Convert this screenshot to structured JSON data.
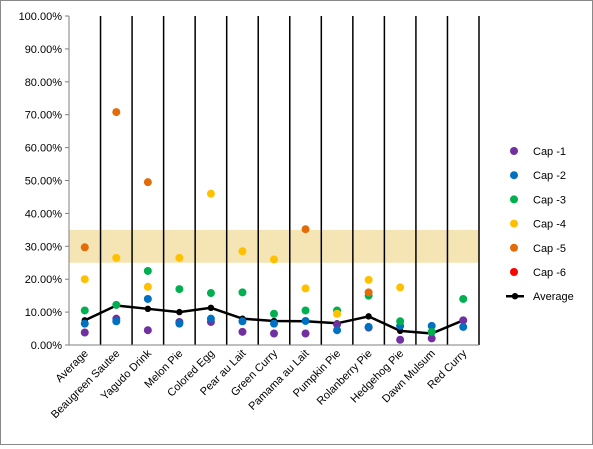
{
  "chart_data": {
    "type": "scatter",
    "title": "",
    "xlabel": "",
    "ylabel": "",
    "ylim": [
      0,
      1
    ],
    "yticks": [
      "0.00%",
      "10.00%",
      "20.00%",
      "30.00%",
      "40.00%",
      "50.00%",
      "60.00%",
      "70.00%",
      "80.00%",
      "90.00%",
      "100.00%"
    ],
    "categories": [
      "Average",
      "Beaugreen Sautee",
      "Yagudo Drink",
      "Melon Pie",
      "Colored Egg",
      "Pear au Lait",
      "Green Curry",
      "Pamama au Lait",
      "Pumpkin Pie",
      "Rolanberry Pie",
      "Hedgehog Pie",
      "Dawn Mulsum",
      "Red Curry"
    ],
    "band": {
      "from": 0.25,
      "to": 0.35,
      "color": "#f5e5b4"
    },
    "grid": "vertical-category-separators",
    "legend_position": "right",
    "series": [
      {
        "name": "Cap -1",
        "kind": "marker",
        "color": "#7030a0",
        "values": [
          0.038,
          0.08,
          0.045,
          0.07,
          0.07,
          0.04,
          0.035,
          0.035,
          0.062,
          0.053,
          0.016,
          0.02,
          0.075
        ]
      },
      {
        "name": "Cap -2",
        "kind": "marker",
        "color": "#0070c0",
        "values": [
          0.065,
          0.072,
          0.14,
          0.065,
          0.08,
          0.072,
          0.065,
          0.073,
          0.045,
          0.055,
          0.058,
          0.058,
          0.055
        ]
      },
      {
        "name": "Cap -3",
        "kind": "marker",
        "color": "#00b050",
        "values": [
          0.105,
          0.122,
          0.225,
          0.17,
          0.158,
          0.16,
          0.095,
          0.105,
          0.105,
          0.15,
          0.072,
          0.04,
          0.14
        ]
      },
      {
        "name": "Cap -4",
        "kind": "marker",
        "color": "#ffc000",
        "values": [
          0.2,
          0.265,
          0.177,
          0.265,
          0.46,
          0.285,
          0.26,
          0.172,
          0.095,
          0.198,
          0.175,
          null,
          null
        ]
      },
      {
        "name": "Cap -5",
        "kind": "marker",
        "color": "#e36c09",
        "values": [
          0.297,
          0.708,
          0.495,
          null,
          null,
          null,
          null,
          0.352,
          null,
          0.16,
          null,
          null,
          null
        ]
      },
      {
        "name": "Cap -6",
        "kind": "marker",
        "color": "#ff0000",
        "values": [
          null,
          null,
          null,
          null,
          null,
          null,
          null,
          null,
          null,
          null,
          null,
          null,
          null
        ]
      },
      {
        "name": "Average",
        "kind": "line",
        "color": "#000000",
        "values": [
          0.075,
          0.12,
          0.11,
          0.1,
          0.113,
          0.08,
          0.073,
          0.072,
          0.066,
          0.087,
          0.043,
          0.035,
          0.075
        ]
      }
    ]
  }
}
